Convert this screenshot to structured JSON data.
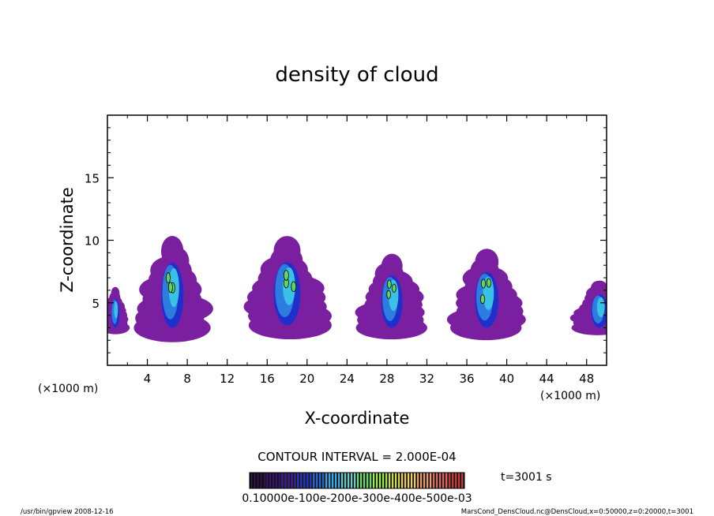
{
  "chart_data": {
    "type": "heatmap",
    "title": "density of cloud",
    "xlabel": "X-coordinate",
    "ylabel": "Z-coordinate",
    "x_unit_label": "(×1000 m)",
    "y_unit_label": "(×1000 m)",
    "xlim": [
      0,
      50
    ],
    "ylim": [
      0,
      20
    ],
    "x_ticks": [
      "4",
      "8",
      "12",
      "16",
      "20",
      "24",
      "28",
      "32",
      "36",
      "40",
      "44",
      "48"
    ],
    "y_ticks": [
      "5",
      "10",
      "15"
    ],
    "contour_interval_label": "CONTOUR INTERVAL = 2.000E-04",
    "time_label": "t=3001 s",
    "colorbar_labels": [
      "0.1000e-1",
      "0.1000e-2",
      "0.2000e-3",
      "0.3000e-3",
      "0.4000e-3",
      "0.5000e-3"
    ],
    "colorbar_label_text": "0.10000e-100e-200e-300e-400e-500e-03",
    "colorbar_colors": [
      "#1a0033",
      "#2a0a66",
      "#3a1a99",
      "#2233cc",
      "#2266dd",
      "#33aaee",
      "#66cccc",
      "#66dd66",
      "#99ee44",
      "#ccdd44",
      "#eecc66",
      "#ee9966",
      "#dd6655",
      "#cc3333"
    ],
    "footer_left": "/usr/bin/gpview   2008-12-16",
    "footer_right": "MarsCond_DensCloud.nc@DensCloud,x=0:50000,z=0:20000,t=3001",
    "clouds": [
      {
        "x_center": 0.8,
        "z_base": 3.0,
        "z_top": 6.2,
        "halfwidth": 1.5
      },
      {
        "x_center": 6.5,
        "z_base": 3.0,
        "z_top": 10.2,
        "halfwidth": 4.0
      },
      {
        "x_center": 18.0,
        "z_base": 3.2,
        "z_top": 10.2,
        "halfwidth": 4.8
      },
      {
        "x_center": 28.5,
        "z_base": 3.0,
        "z_top": 8.8,
        "halfwidth": 3.8
      },
      {
        "x_center": 38.0,
        "z_base": 3.0,
        "z_top": 9.2,
        "halfwidth": 4.2
      },
      {
        "x_center": 49.3,
        "z_base": 3.0,
        "z_top": 6.7,
        "halfwidth": 3.0
      }
    ],
    "colors": {
      "outer": "#7a1fa0",
      "blue_dark": "#1f2fcc",
      "blue_mid": "#2d7de0",
      "cyan": "#39c2e6",
      "green": "#5ed85e"
    },
    "grid": false
  }
}
